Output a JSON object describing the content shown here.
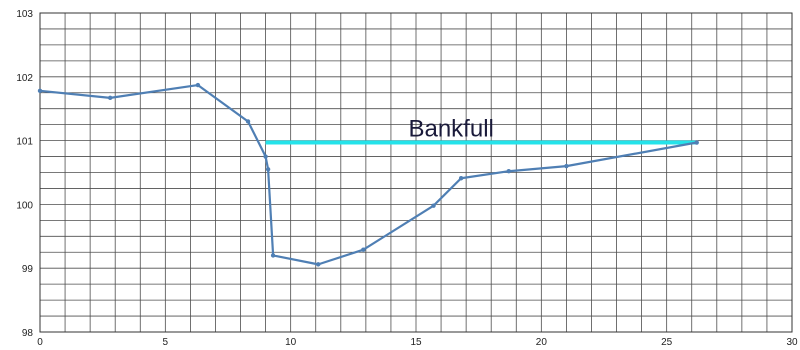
{
  "chart_data": {
    "type": "line",
    "title": "",
    "xlabel": "",
    "ylabel": "",
    "xlim": [
      0,
      30
    ],
    "ylim": [
      98,
      103
    ],
    "grid": true,
    "x_major_ticks": [
      0,
      5,
      10,
      15,
      20,
      25,
      30
    ],
    "y_major_ticks": [
      98,
      99,
      100,
      101,
      102,
      103
    ],
    "series": [
      {
        "color": "#4f7fb4",
        "marker": "dot",
        "points": [
          [
            0,
            101.78
          ],
          [
            2.8,
            101.67
          ],
          [
            6.3,
            101.87
          ],
          [
            8.3,
            101.3
          ],
          [
            9.0,
            100.75
          ],
          [
            9.1,
            100.55
          ],
          [
            9.3,
            99.2
          ],
          [
            11.1,
            99.06
          ],
          [
            12.9,
            99.29
          ],
          [
            15.7,
            99.98
          ],
          [
            16.8,
            100.41
          ],
          [
            18.7,
            100.52
          ],
          [
            21.0,
            100.6
          ],
          [
            26.2,
            100.97
          ]
        ]
      }
    ],
    "reference_lines": [
      {
        "label": "Bankfull",
        "y": 100.97,
        "x_start": 9.0,
        "x_end": 26.2,
        "color": "#24e3ea"
      }
    ]
  }
}
